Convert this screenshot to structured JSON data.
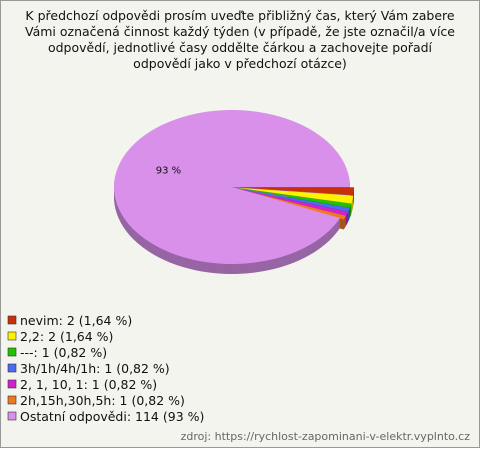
{
  "chart_data": {
    "type": "pie",
    "title": [
      "K předchozí odpovědi prosím uveďte přibližný čas, který Vám zabere",
      "Vámi označená činnost každý týden (v případě, že jste označil/a více",
      "odpovědí, jednotlivé časy oddělte čárkou a zachovejte pořadí",
      "odpovědí jako v předchozí otázce)"
    ],
    "categories": [
      "nevim: 2 (1,64 %)",
      "2,2: 2 (1,64 %)",
      "---: 1 (0,82 %)",
      "3h/1h/4h/1h: 1 (0,82 %)",
      "2, 1, 10, 1: 1 (0,82 %)",
      "2h,15h,30h,5h: 1 (0,82 %)",
      "Ostatní odpovědi: 114 (93 %)"
    ],
    "values": [
      1.64,
      1.64,
      0.82,
      0.82,
      0.82,
      0.82,
      93
    ],
    "value_labels": [
      null,
      null,
      null,
      null,
      null,
      null,
      "93 %"
    ],
    "colors": [
      "#c8300c",
      "#fff200",
      "#22c000",
      "#4a6cf0",
      "#d020d0",
      "#f07820",
      "#d890ea"
    ],
    "source": "zdroj: https://rychlost-zapominani-v-elektr.vyplnto.cz"
  }
}
